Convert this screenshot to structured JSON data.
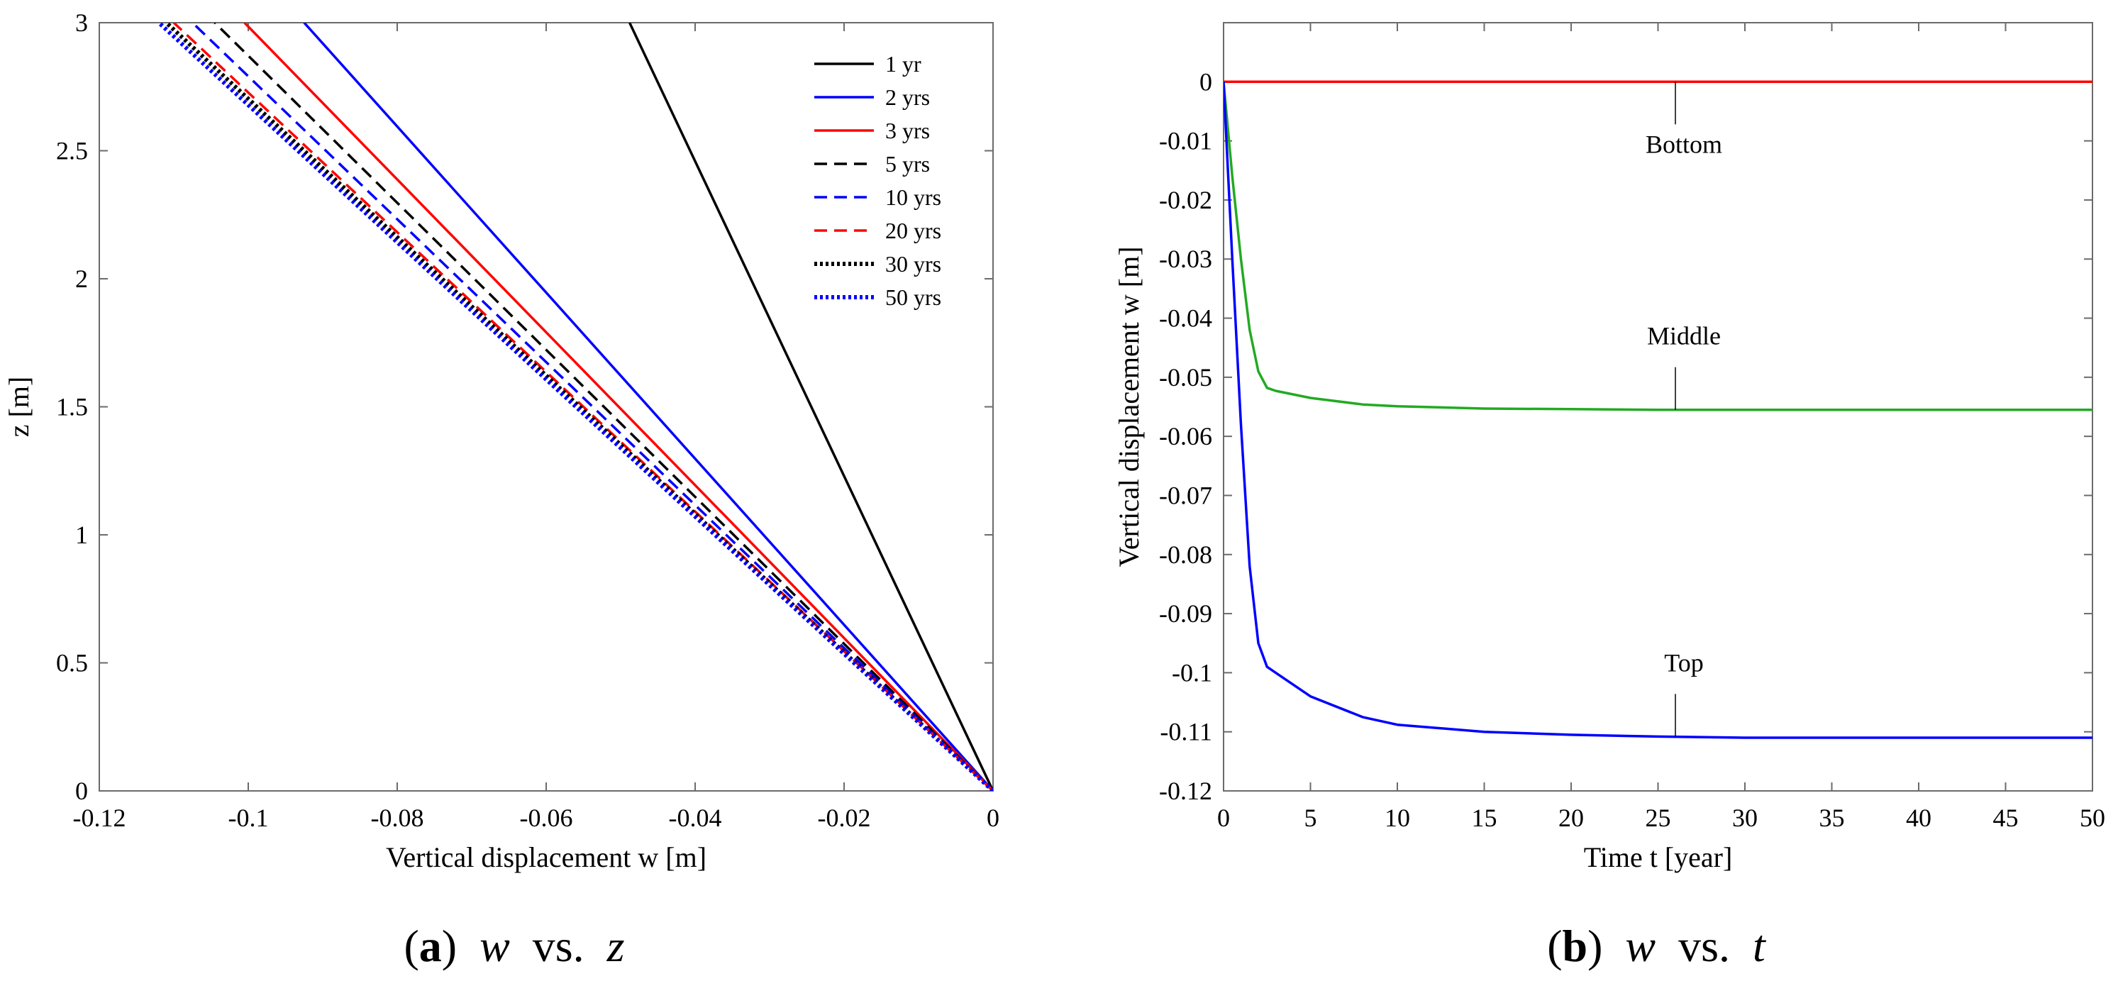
{
  "chart_data": [
    {
      "type": "line",
      "panel_label": "a",
      "caption": {
        "open": "(",
        "letter": "a",
        "close": ")",
        "var1": "w",
        "vs": "vs.",
        "var2": "z"
      },
      "xlabel": "Vertical displacement w [m]",
      "ylabel": "z [m]",
      "xlim": [
        -0.12,
        0
      ],
      "ylim": [
        0,
        3
      ],
      "xticks": [
        -0.12,
        -0.1,
        -0.08,
        -0.06,
        -0.04,
        -0.02,
        0
      ],
      "xtick_labels": [
        "-0.12",
        "-0.1",
        "-0.08",
        "-0.06",
        "-0.04",
        "-0.02",
        "0"
      ],
      "yticks": [
        0,
        0.5,
        1,
        1.5,
        2,
        2.5,
        3
      ],
      "ytick_labels": [
        "0",
        "0.5",
        "1",
        "1.5",
        "2",
        "2.5",
        "3"
      ],
      "legend_position": "top-right",
      "series": [
        {
          "name": "1 yr",
          "color": "#000000",
          "style": "solid",
          "x": [
            0,
            -0.0488
          ],
          "y": [
            0,
            3
          ]
        },
        {
          "name": "2 yrs",
          "color": "#0000ff",
          "style": "solid",
          "x": [
            0,
            -0.0925
          ],
          "y": [
            0,
            3
          ]
        },
        {
          "name": "3 yrs",
          "color": "#ff0000",
          "style": "solid",
          "x": [
            0,
            -0.1005
          ],
          "y": [
            0,
            3
          ]
        },
        {
          "name": "5 yrs",
          "color": "#000000",
          "style": "dashed",
          "x": [
            0,
            -0.1045
          ],
          "y": [
            0,
            3
          ]
        },
        {
          "name": "10 yrs",
          "color": "#0000ff",
          "style": "dashed",
          "x": [
            0,
            -0.1075
          ],
          "y": [
            0,
            3
          ]
        },
        {
          "name": "20 yrs",
          "color": "#ff0000",
          "style": "dashed",
          "x": [
            0,
            -0.11
          ],
          "y": [
            0,
            3
          ]
        },
        {
          "name": "30 yrs",
          "color": "#000000",
          "style": "dotted",
          "x": [
            0,
            -0.111
          ],
          "y": [
            0,
            3
          ]
        },
        {
          "name": "50 yrs",
          "color": "#0000ff",
          "style": "dotted",
          "x": [
            0,
            -0.112
          ],
          "y": [
            0,
            3
          ]
        }
      ]
    },
    {
      "type": "line",
      "panel_label": "b",
      "caption": {
        "open": "(",
        "letter": "b",
        "close": ")",
        "var1": "w",
        "vs": "vs.",
        "var2": "t"
      },
      "xlabel": "Time t [year]",
      "ylabel": "Vertical displacement w [m]",
      "xlim": [
        0,
        50
      ],
      "ylim": [
        -0.12,
        0.01
      ],
      "xticks": [
        0,
        5,
        10,
        15,
        20,
        25,
        30,
        35,
        40,
        45,
        50
      ],
      "xtick_labels": [
        "0",
        "5",
        "10",
        "15",
        "20",
        "25",
        "30",
        "35",
        "40",
        "45",
        "50"
      ],
      "yticks": [
        0,
        -0.01,
        -0.02,
        -0.03,
        -0.04,
        -0.05,
        -0.06,
        -0.07,
        -0.08,
        -0.09,
        -0.1,
        -0.11,
        -0.12
      ],
      "ytick_labels": [
        "0",
        "-0.01",
        "-0.02",
        "-0.03",
        "-0.04",
        "-0.05",
        "-0.06",
        "-0.07",
        "-0.08",
        "-0.09",
        "-0.1",
        "-0.11",
        "-0.12"
      ],
      "series": [
        {
          "name": "Bottom",
          "color": "#ff0000",
          "style": "solid",
          "x": [
            0,
            50
          ],
          "y": [
            0,
            0
          ]
        },
        {
          "name": "Middle",
          "color": "#22aa22",
          "style": "solid",
          "x": [
            0,
            0.5,
            1,
            1.5,
            2,
            2.5,
            3,
            5,
            8,
            10,
            15,
            20,
            25,
            30,
            40,
            50
          ],
          "y": [
            0,
            -0.016,
            -0.03,
            -0.042,
            -0.049,
            -0.0518,
            -0.0523,
            -0.0535,
            -0.0546,
            -0.0549,
            -0.0553,
            -0.0554,
            -0.0555,
            -0.0555,
            -0.0555,
            -0.0555
          ]
        },
        {
          "name": "Top",
          "color": "#0000ff",
          "style": "solid",
          "x": [
            0,
            0.5,
            1,
            1.5,
            2,
            2.5,
            3,
            5,
            8,
            10,
            15,
            20,
            25,
            30,
            40,
            50
          ],
          "y": [
            0,
            -0.03,
            -0.058,
            -0.082,
            -0.095,
            -0.099,
            -0.1,
            -0.104,
            -0.1075,
            -0.1088,
            -0.11,
            -0.1105,
            -0.1108,
            -0.111,
            -0.111,
            -0.111
          ]
        }
      ],
      "annotations": [
        {
          "text": "Bottom",
          "x": 26,
          "y": 0
        },
        {
          "text": "Middle",
          "x": 26,
          "y": -0.0555
        },
        {
          "text": "Top",
          "x": 26,
          "y": -0.1108
        }
      ]
    }
  ]
}
